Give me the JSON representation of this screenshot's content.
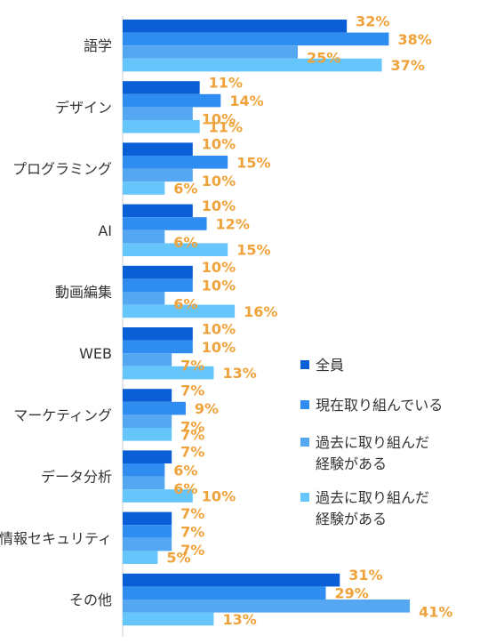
{
  "chart_data": {
    "type": "bar",
    "orientation": "horizontal",
    "categories": [
      "語学",
      "デザイン",
      "プログラミング",
      "AI",
      "動画編集",
      "WEB",
      "マーケティング",
      "データ分析",
      "情報セキュリティ",
      "その他"
    ],
    "series": [
      {
        "name": "全員",
        "color": "#0a5fd6",
        "values": [
          32,
          11,
          10,
          10,
          10,
          10,
          7,
          7,
          7,
          31
        ]
      },
      {
        "name": "現在取り組んでいる",
        "color": "#2f8cf0",
        "values": [
          38,
          14,
          15,
          12,
          10,
          10,
          9,
          6,
          7,
          29
        ]
      },
      {
        "name": "過去に取り組んだ\n経験がある",
        "color": "#55a7f2",
        "values": [
          25,
          10,
          10,
          6,
          6,
          7,
          7,
          6,
          7,
          41
        ]
      },
      {
        "name": "過去に取り組んだ\n経験がある",
        "color": "#66c5fb",
        "values": [
          37,
          11,
          6,
          15,
          16,
          13,
          7,
          10,
          5,
          13
        ]
      }
    ],
    "value_suffix": "%",
    "xlim": [
      0,
      50
    ],
    "label_color": "#f0a23a",
    "legend_position": "right",
    "grid": false
  }
}
